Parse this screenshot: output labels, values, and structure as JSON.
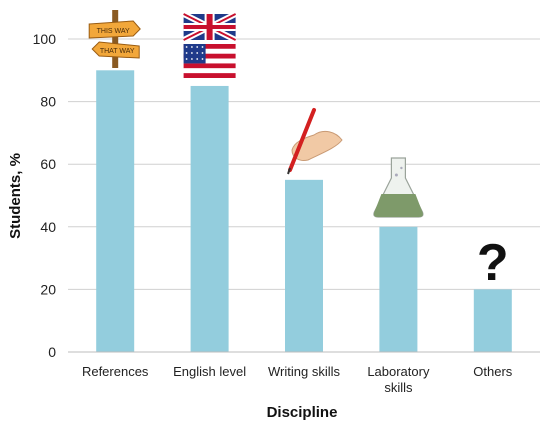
{
  "chart_data": {
    "type": "bar",
    "title": "",
    "xlabel": "Discipline",
    "ylabel": "Students, %",
    "ylim": [
      0,
      100
    ],
    "yticks": [
      0,
      20,
      40,
      60,
      80,
      100
    ],
    "grid": "horizontal",
    "bar_color": "#93cddd",
    "categories": [
      [
        "References"
      ],
      [
        "English level"
      ],
      [
        "Writing skills"
      ],
      [
        "Laboratory",
        "skills"
      ],
      [
        "Others"
      ]
    ],
    "values": [
      90,
      85,
      55,
      40,
      20
    ],
    "bar_icons": [
      "signpost-icon",
      "flags-icon",
      "writing-hand-icon",
      "flask-icon",
      "question-mark-icon"
    ],
    "signpost_text": [
      "THIS WAY",
      "THAT WAY"
    ],
    "question_mark": "?"
  }
}
